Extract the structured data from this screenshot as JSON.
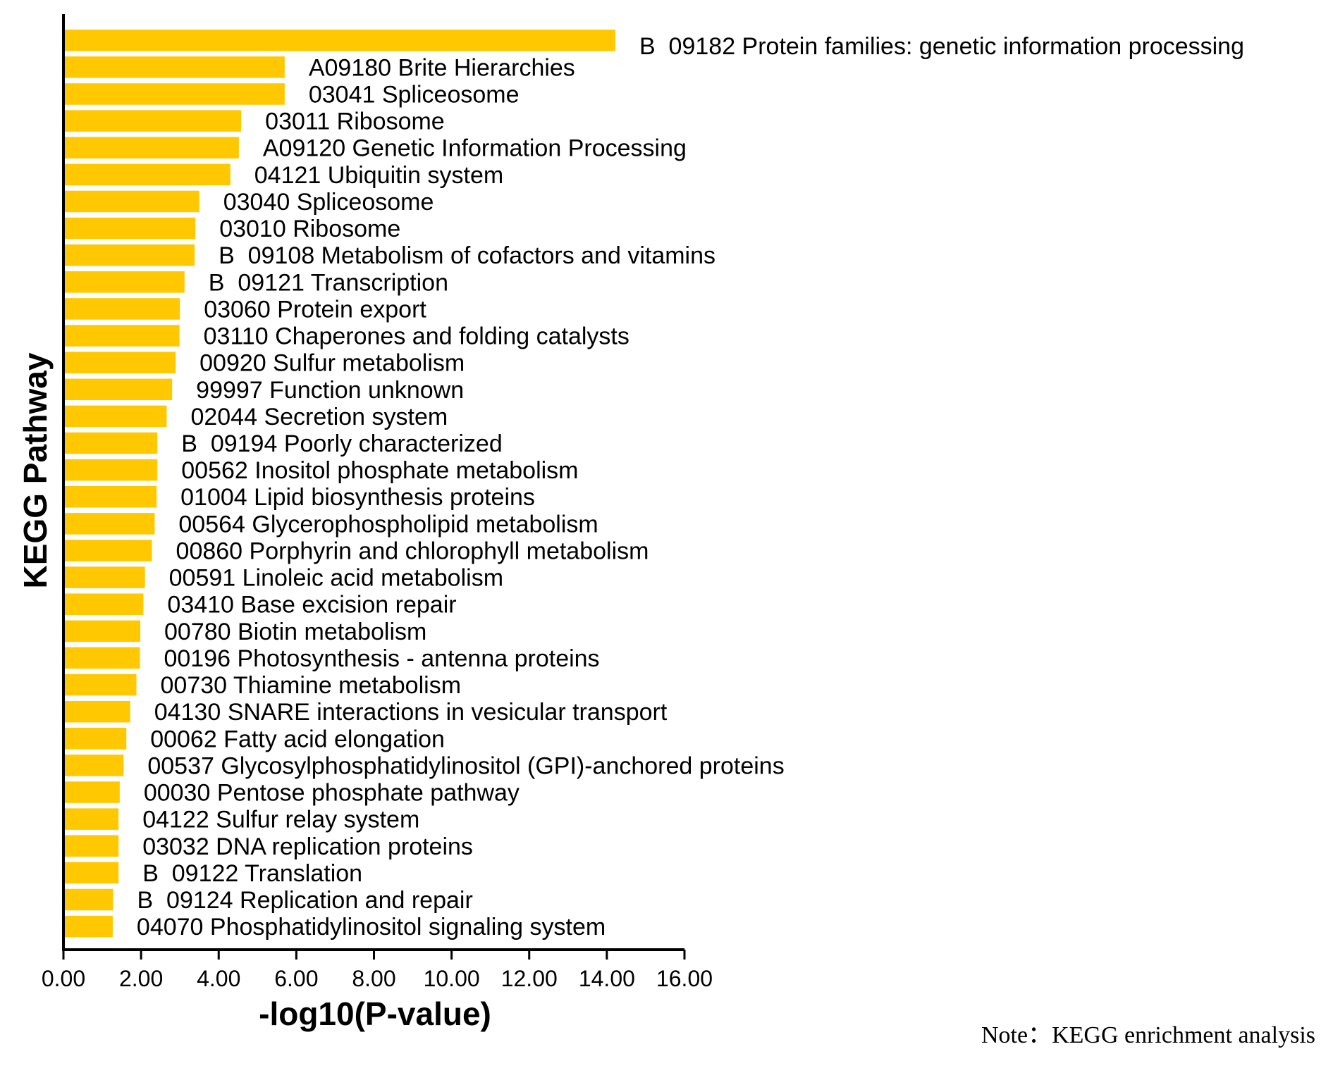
{
  "chart_data": {
    "type": "bar",
    "orientation": "horizontal",
    "bar_color": "#FFC800",
    "xlabel": "-log10(P-value)",
    "ylabel": "KEGG Pathway",
    "xlim": [
      0,
      16
    ],
    "x_ticks": [
      "0.00",
      "2.00",
      "4.00",
      "6.00",
      "8.00",
      "10.00",
      "12.00",
      "14.00",
      "16.00"
    ],
    "note": "Note：KEGG enrichment analysis",
    "categories": [
      "B  09182 Protein families: genetic information processing",
      "A09180 Brite Hierarchies",
      "03041 Spliceosome",
      "03011 Ribosome",
      "A09120 Genetic Information Processing",
      "04121 Ubiquitin system",
      "03040 Spliceosome",
      "03010 Ribosome",
      "B  09108 Metabolism of cofactors and vitamins",
      "B  09121 Transcription",
      "03060 Protein export",
      "03110 Chaperones and folding catalysts",
      "00920 Sulfur metabolism",
      "99997 Function unknown",
      "02044 Secretion system",
      "B  09194 Poorly characterized",
      "00562 Inositol phosphate metabolism",
      "01004 Lipid biosynthesis proteins",
      "00564 Glycerophospholipid metabolism",
      "00860 Porphyrin and chlorophyll metabolism",
      "00591 Linoleic acid metabolism",
      "03410 Base excision repair",
      "00780 Biotin metabolism",
      "00196 Photosynthesis - antenna proteins",
      "00730 Thiamine metabolism",
      "04130 SNARE interactions in vesicular transport",
      "00062 Fatty acid elongation",
      "00537 Glycosylphosphatidylinositol (GPI)-anchored proteins",
      "00030 Pentose phosphate pathway",
      "04122 Sulfur relay system",
      "03032 DNA replication proteins",
      "B  09122 Translation",
      "B  09124 Replication and repair",
      "04070 Phosphatidylinositol signaling system"
    ],
    "values": [
      14.22,
      5.7,
      5.7,
      4.58,
      4.52,
      4.3,
      3.5,
      3.4,
      3.38,
      3.12,
      3.0,
      2.99,
      2.89,
      2.8,
      2.66,
      2.42,
      2.42,
      2.4,
      2.35,
      2.28,
      2.1,
      2.06,
      1.98,
      1.97,
      1.88,
      1.72,
      1.62,
      1.55,
      1.45,
      1.42,
      1.42,
      1.42,
      1.28,
      1.27
    ]
  }
}
